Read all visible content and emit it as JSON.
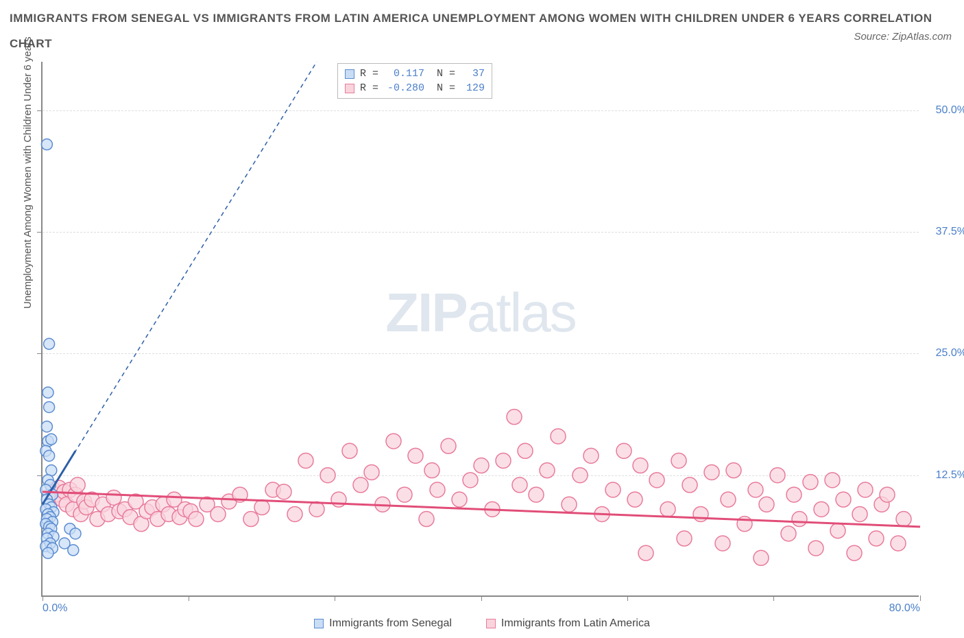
{
  "title": "IMMIGRANTS FROM SENEGAL VS IMMIGRANTS FROM LATIN AMERICA UNEMPLOYMENT AMONG WOMEN WITH CHILDREN UNDER 6 YEARS CORRELATION CHART",
  "source": "Source: ZipAtlas.com",
  "y_axis_label": "Unemployment Among Women with Children Under 6 years",
  "watermark_zip": "ZIP",
  "watermark_atlas": "atlas",
  "chart": {
    "type": "scatter-correlation",
    "xlim": [
      0,
      80
    ],
    "ylim": [
      0,
      55
    ],
    "x_ticks": [
      0,
      13.3,
      26.6,
      40,
      53.3,
      66.6,
      80
    ],
    "x_tick_labels": {
      "0": "0.0%",
      "80": "80.0%"
    },
    "y_gridlines": [
      12.5,
      25.0,
      37.5,
      50.0
    ],
    "y_tick_labels": [
      "12.5%",
      "25.0%",
      "37.5%",
      "50.0%"
    ],
    "grid_color": "#dddddd",
    "axis_color": "#888888",
    "background": "#ffffff",
    "series": [
      {
        "name": "Immigrants from Senegal",
        "color_fill": "#c9ddf5",
        "color_stroke": "#5a8cd1",
        "trend_color": "#2c5fa8",
        "marker_radius": 8,
        "R": "0.117",
        "N": "37",
        "trend_solid": {
          "x1": 0,
          "y1": 9.5,
          "x2": 3.0,
          "y2": 15.0
        },
        "trend_dashed": {
          "x1": 0,
          "y1": 9.5,
          "x2": 25.0,
          "y2": 55.0
        },
        "points": [
          [
            0.4,
            46.5
          ],
          [
            0.6,
            26.0
          ],
          [
            0.5,
            21.0
          ],
          [
            0.6,
            19.5
          ],
          [
            0.4,
            17.5
          ],
          [
            0.5,
            16.0
          ],
          [
            0.8,
            16.2
          ],
          [
            0.3,
            15.0
          ],
          [
            0.6,
            14.5
          ],
          [
            0.8,
            13.0
          ],
          [
            0.5,
            12.0
          ],
          [
            0.7,
            11.5
          ],
          [
            0.3,
            11.0
          ],
          [
            0.9,
            10.5
          ],
          [
            0.4,
            10.0
          ],
          [
            0.6,
            9.5
          ],
          [
            0.8,
            9.2
          ],
          [
            0.3,
            9.0
          ],
          [
            1.0,
            8.7
          ],
          [
            0.5,
            8.5
          ],
          [
            0.7,
            8.2
          ],
          [
            0.4,
            8.0
          ],
          [
            0.9,
            7.7
          ],
          [
            0.3,
            7.5
          ],
          [
            0.6,
            7.2
          ],
          [
            0.8,
            7.0
          ],
          [
            0.5,
            6.5
          ],
          [
            1.0,
            6.2
          ],
          [
            0.4,
            6.0
          ],
          [
            0.7,
            5.5
          ],
          [
            0.3,
            5.2
          ],
          [
            0.9,
            5.0
          ],
          [
            0.5,
            4.5
          ],
          [
            2.5,
            7.0
          ],
          [
            3.0,
            6.5
          ],
          [
            2.0,
            5.5
          ],
          [
            2.8,
            4.8
          ]
        ]
      },
      {
        "name": "Immigrants from Latin America",
        "color_fill": "#f9d4dd",
        "color_stroke": "#e87b9b",
        "trend_color": "#e14d78",
        "marker_radius": 11,
        "R": "-0.280",
        "N": "129",
        "trend_solid": {
          "x1": 0,
          "y1": 10.8,
          "x2": 80,
          "y2": 7.2
        },
        "points": [
          [
            1.0,
            11.0
          ],
          [
            1.2,
            10.5
          ],
          [
            1.5,
            11.2
          ],
          [
            1.8,
            10.0
          ],
          [
            2.0,
            10.8
          ],
          [
            2.2,
            9.5
          ],
          [
            2.5,
            11.0
          ],
          [
            2.8,
            9.0
          ],
          [
            3.0,
            10.5
          ],
          [
            3.2,
            11.5
          ],
          [
            3.5,
            8.5
          ],
          [
            3.8,
            9.8
          ],
          [
            4.0,
            9.2
          ],
          [
            4.5,
            10.0
          ],
          [
            5.0,
            8.0
          ],
          [
            5.5,
            9.5
          ],
          [
            6.0,
            8.5
          ],
          [
            6.5,
            10.2
          ],
          [
            7.0,
            8.8
          ],
          [
            7.5,
            9.0
          ],
          [
            8.0,
            8.2
          ],
          [
            8.5,
            9.8
          ],
          [
            9.0,
            7.5
          ],
          [
            9.5,
            8.8
          ],
          [
            10.0,
            9.2
          ],
          [
            10.5,
            8.0
          ],
          [
            11.0,
            9.5
          ],
          [
            11.5,
            8.5
          ],
          [
            12.0,
            10.0
          ],
          [
            12.5,
            8.2
          ],
          [
            13.0,
            9.0
          ],
          [
            13.5,
            8.8
          ],
          [
            14.0,
            8.0
          ],
          [
            15.0,
            9.5
          ],
          [
            16.0,
            8.5
          ],
          [
            17.0,
            9.8
          ],
          [
            18.0,
            10.5
          ],
          [
            19.0,
            8.0
          ],
          [
            20.0,
            9.2
          ],
          [
            21.0,
            11.0
          ],
          [
            22.0,
            10.8
          ],
          [
            23.0,
            8.5
          ],
          [
            24.0,
            14.0
          ],
          [
            25.0,
            9.0
          ],
          [
            26.0,
            12.5
          ],
          [
            27.0,
            10.0
          ],
          [
            28.0,
            15.0
          ],
          [
            29.0,
            11.5
          ],
          [
            30.0,
            12.8
          ],
          [
            31.0,
            9.5
          ],
          [
            32.0,
            16.0
          ],
          [
            33.0,
            10.5
          ],
          [
            34.0,
            14.5
          ],
          [
            35.0,
            8.0
          ],
          [
            35.5,
            13.0
          ],
          [
            36.0,
            11.0
          ],
          [
            37.0,
            15.5
          ],
          [
            38.0,
            10.0
          ],
          [
            39.0,
            12.0
          ],
          [
            40.0,
            13.5
          ],
          [
            41.0,
            9.0
          ],
          [
            42.0,
            14.0
          ],
          [
            43.0,
            18.5
          ],
          [
            43.5,
            11.5
          ],
          [
            44.0,
            15.0
          ],
          [
            45.0,
            10.5
          ],
          [
            46.0,
            13.0
          ],
          [
            47.0,
            16.5
          ],
          [
            48.0,
            9.5
          ],
          [
            49.0,
            12.5
          ],
          [
            50.0,
            14.5
          ],
          [
            51.0,
            8.5
          ],
          [
            52.0,
            11.0
          ],
          [
            53.0,
            15.0
          ],
          [
            54.0,
            10.0
          ],
          [
            54.5,
            13.5
          ],
          [
            55.0,
            4.5
          ],
          [
            56.0,
            12.0
          ],
          [
            57.0,
            9.0
          ],
          [
            58.0,
            14.0
          ],
          [
            58.5,
            6.0
          ],
          [
            59.0,
            11.5
          ],
          [
            60.0,
            8.5
          ],
          [
            61.0,
            12.8
          ],
          [
            62.0,
            5.5
          ],
          [
            62.5,
            10.0
          ],
          [
            63.0,
            13.0
          ],
          [
            64.0,
            7.5
          ],
          [
            65.0,
            11.0
          ],
          [
            65.5,
            4.0
          ],
          [
            66.0,
            9.5
          ],
          [
            67.0,
            12.5
          ],
          [
            68.0,
            6.5
          ],
          [
            68.5,
            10.5
          ],
          [
            69.0,
            8.0
          ],
          [
            70.0,
            11.8
          ],
          [
            70.5,
            5.0
          ],
          [
            71.0,
            9.0
          ],
          [
            72.0,
            12.0
          ],
          [
            72.5,
            6.8
          ],
          [
            73.0,
            10.0
          ],
          [
            74.0,
            4.5
          ],
          [
            74.5,
            8.5
          ],
          [
            75.0,
            11.0
          ],
          [
            76.0,
            6.0
          ],
          [
            76.5,
            9.5
          ],
          [
            77.0,
            10.5
          ],
          [
            78.0,
            5.5
          ],
          [
            78.5,
            8.0
          ]
        ]
      }
    ],
    "legend_box_labels": {
      "R": "R =",
      "N": "N ="
    }
  },
  "bottom_legend": [
    {
      "label": "Immigrants from Senegal",
      "fill": "#c9ddf5",
      "stroke": "#5a8cd1"
    },
    {
      "label": "Immigrants from Latin America",
      "fill": "#f9d4dd",
      "stroke": "#e87b9b"
    }
  ]
}
